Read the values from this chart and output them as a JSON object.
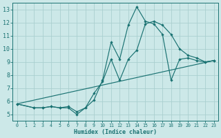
{
  "xlabel": "Humidex (Indice chaleur)",
  "xlim": [
    -0.5,
    23.5
  ],
  "ylim": [
    4.5,
    13.5
  ],
  "xticks": [
    0,
    1,
    2,
    3,
    4,
    5,
    6,
    7,
    8,
    9,
    10,
    11,
    12,
    13,
    14,
    15,
    16,
    17,
    18,
    19,
    20,
    21,
    22,
    23
  ],
  "yticks": [
    5,
    6,
    7,
    8,
    9,
    10,
    11,
    12,
    13
  ],
  "bg_color": "#cce8e8",
  "grid_color": "#aacfcf",
  "line_color": "#1a7272",
  "line1_x": [
    0,
    2,
    3,
    4,
    5,
    6,
    7,
    8,
    9,
    10,
    11,
    12,
    13,
    14,
    15,
    16,
    17,
    18,
    19,
    20,
    21,
    22,
    23
  ],
  "line1_y": [
    5.8,
    5.5,
    5.5,
    5.6,
    5.5,
    5.5,
    5.0,
    5.5,
    6.1,
    7.6,
    10.5,
    9.2,
    11.8,
    13.2,
    12.1,
    11.9,
    11.1,
    7.6,
    9.2,
    9.3,
    9.1,
    9.0,
    9.1
  ],
  "line2_x": [
    0,
    2,
    3,
    4,
    5,
    6,
    7,
    8,
    9,
    10,
    11,
    12,
    13,
    14,
    15,
    16,
    17,
    18,
    19,
    20,
    21,
    22,
    23
  ],
  "line2_y": [
    5.8,
    5.5,
    5.5,
    5.6,
    5.5,
    5.6,
    5.2,
    5.5,
    6.6,
    7.5,
    9.2,
    7.6,
    9.2,
    9.9,
    11.9,
    12.1,
    11.8,
    11.1,
    10.0,
    9.5,
    9.3,
    9.0,
    9.1
  ],
  "line3_x": [
    0,
    23
  ],
  "line3_y": [
    5.8,
    9.1
  ]
}
